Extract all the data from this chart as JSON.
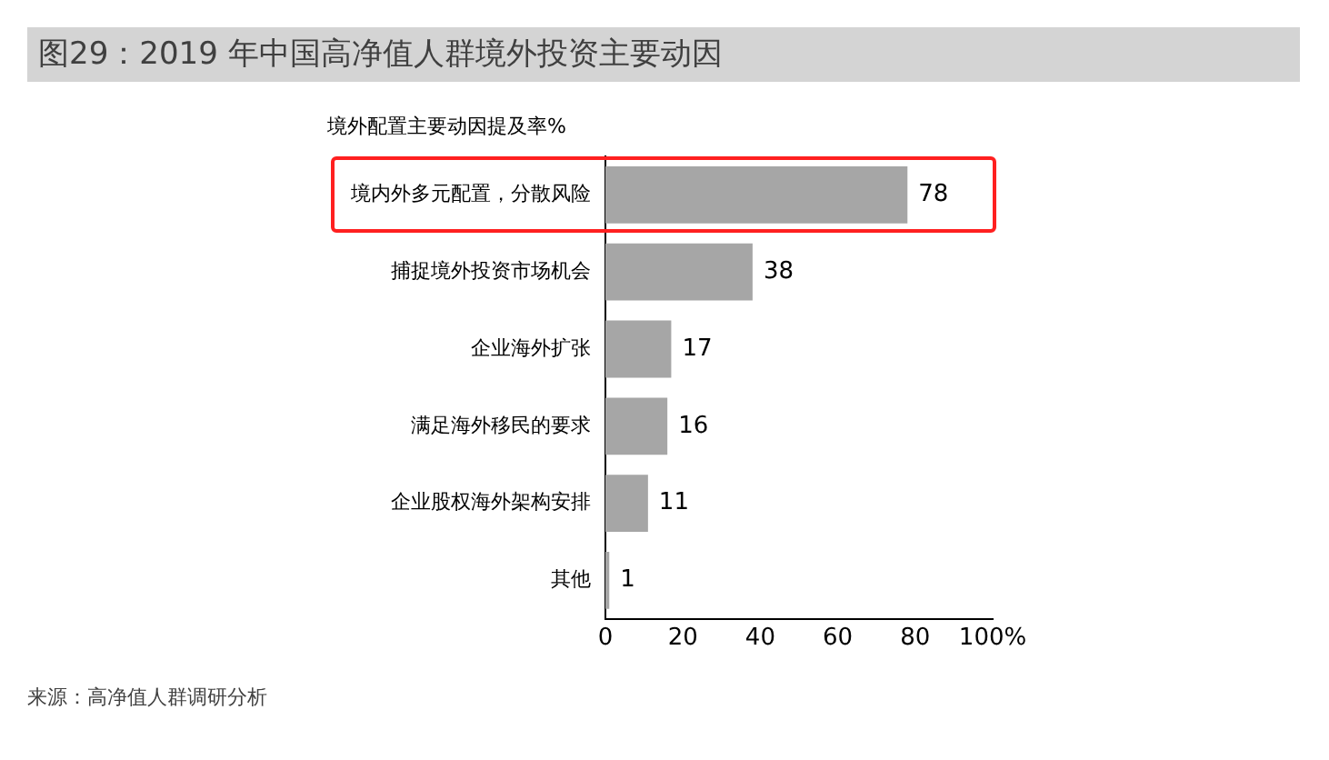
{
  "chart_data": {
    "type": "bar",
    "orientation": "horizontal",
    "title": "图29：2019 年中国高净值人群境外投资主要动因",
    "subtitle": "境外配置主要动因提及率%",
    "categories": [
      "境内外多元配置，分散风险",
      "捕捉境外投资市场机会",
      "企业海外扩张",
      "满足海外移民的要求",
      "企业股权海外架构安排",
      "其他"
    ],
    "values": [
      78,
      38,
      17,
      16,
      11,
      1
    ],
    "color": "#a6a6a6",
    "data_labels": true,
    "xlim": [
      0,
      100
    ],
    "xticks": [
      0,
      20,
      40,
      60,
      80,
      {
        "value": 100,
        "label": "100%"
      }
    ],
    "grid": false,
    "legend": false,
    "annotations": [
      "来源：高净值人群调研分析"
    ]
  }
}
